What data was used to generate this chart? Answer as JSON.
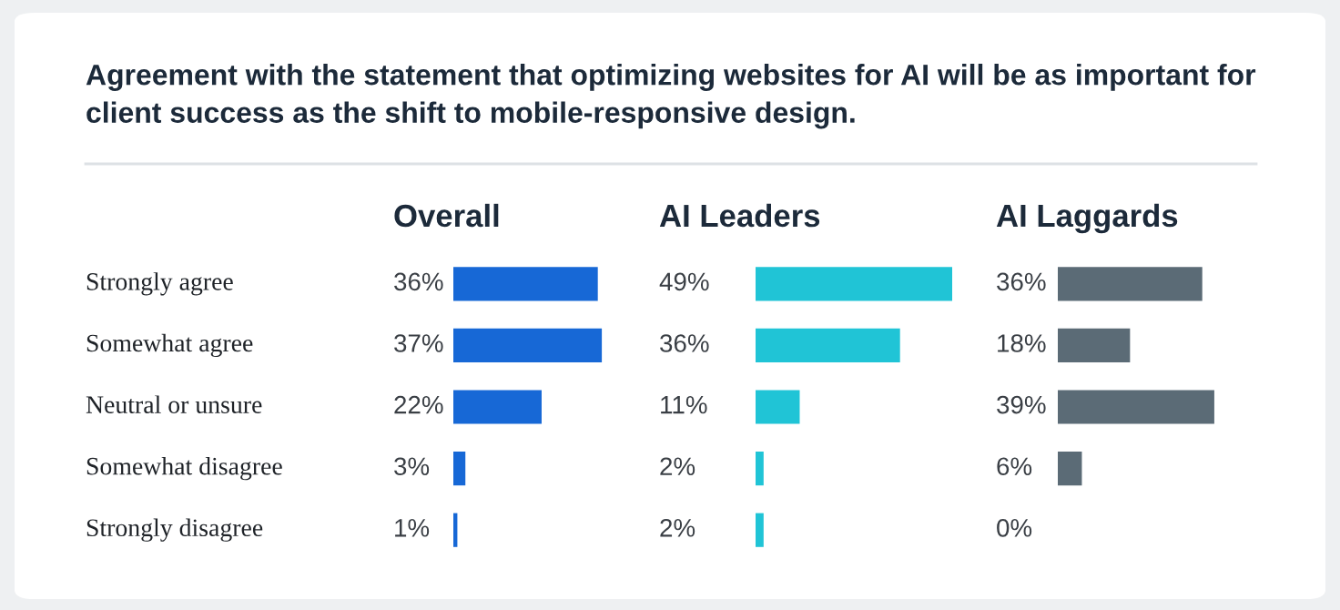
{
  "chart_data": [
    {
      "type": "bar",
      "orientation": "horizontal",
      "title": "Overall",
      "annotations": [
        "Agreement with the statement that optimizing websites for AI will be as important for client success as the shift to mobile-responsive design."
      ],
      "categories": [
        "Strongly agree",
        "Somewhat agree",
        "Neutral or unsure",
        "Somewhat disagree",
        "Strongly disagree"
      ],
      "values": [
        36,
        37,
        22,
        3,
        1
      ],
      "value_labels": [
        "36%",
        "37%",
        "22%",
        "3%",
        "1%"
      ],
      "color": "#1768d6"
    },
    {
      "type": "bar",
      "orientation": "horizontal",
      "title": "AI Leaders",
      "categories": [
        null,
        null,
        null,
        null,
        null
      ],
      "values": [
        49,
        36,
        11,
        2,
        2
      ],
      "value_labels": [
        "49%",
        "36%",
        "11%",
        "2%",
        "2%"
      ],
      "color": "#20c4d6"
    },
    {
      "type": "bar",
      "orientation": "horizontal",
      "title": "AI Laggards",
      "categories": [
        null,
        null,
        null,
        null,
        null
      ],
      "values": [
        36,
        18,
        39,
        6,
        0
      ],
      "value_labels": [
        "36%",
        "18%",
        "39%",
        "6%",
        "0%"
      ],
      "color": "#5b6b76"
    }
  ]
}
